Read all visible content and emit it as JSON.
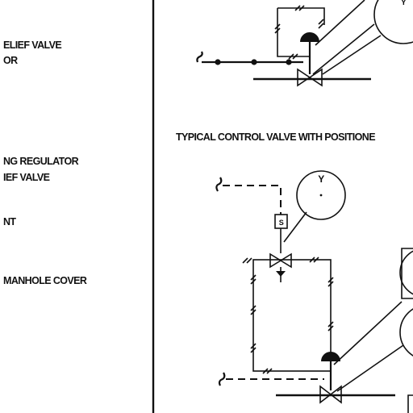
{
  "legend": {
    "items": [
      {
        "line1": "ELIEF VALVE",
        "line2": "OR"
      },
      {
        "line1": "NG REGULATOR",
        "line2": "IEF VALVE"
      },
      {
        "line1": "NT"
      },
      {
        "line1": "MANHOLE COVER"
      }
    ]
  },
  "diagram": {
    "section_title": "TYPICAL CONTROL VALVE WITH POSITIONE",
    "instrument_letters": {
      "upper_y": "Y",
      "lower_y": "Y"
    },
    "box_tag": "S"
  },
  "colors": {
    "ink": "#111111",
    "paper": "#ffffff"
  }
}
